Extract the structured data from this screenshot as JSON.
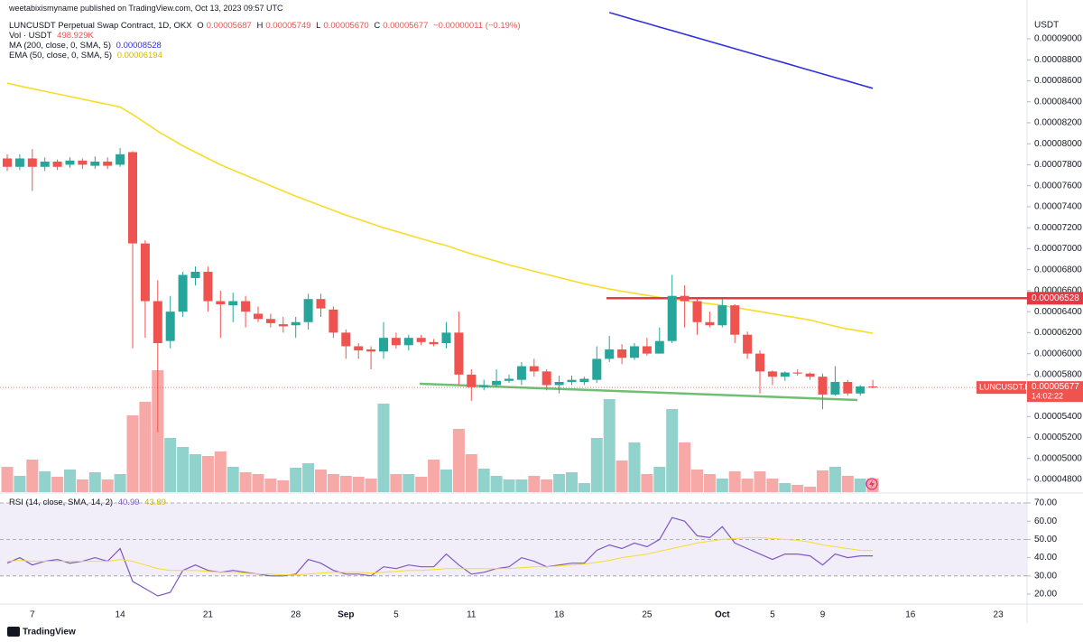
{
  "header": {
    "attribution": "weetabixismyname published on TradingView.com, Oct 13, 2023 09:57 UTC",
    "symbol": "LUNCUSDT Perpetual Swap Contract, 1D, OKX",
    "ohlc": [
      {
        "key": "O",
        "value": "0.00005687"
      },
      {
        "key": "H",
        "value": "0.00005749"
      },
      {
        "key": "L",
        "value": "0.00005670"
      },
      {
        "key": "C",
        "value": "0.00005677"
      }
    ],
    "change": "−0.00000011 (−0.19%)"
  },
  "chart_data": [
    {
      "type": "candlestick",
      "y_unit": "USDT",
      "up_color": "#26a69a",
      "down_color": "#ef5350",
      "categories": [
        null,
        null,
        "7",
        null,
        null,
        null,
        null,
        null,
        null,
        "14",
        null,
        null,
        null,
        null,
        null,
        null,
        "21",
        null,
        null,
        null,
        null,
        null,
        null,
        "28",
        null,
        null,
        null,
        "Sep",
        null,
        null,
        null,
        "5",
        null,
        null,
        null,
        null,
        null,
        "11",
        null,
        null,
        null,
        null,
        null,
        null,
        "18",
        null,
        null,
        null,
        null,
        null,
        null,
        "25",
        null,
        null,
        null,
        null,
        null,
        "Oct",
        null,
        null,
        null,
        "5",
        null,
        null,
        null,
        "9",
        null,
        null,
        null,
        null,
        null,
        null,
        "16",
        null,
        null,
        null,
        null,
        null,
        null,
        "23",
        null,
        null
      ],
      "open": [
        7.86e-05,
        7.78e-05,
        7.86e-05,
        7.78e-05,
        7.83e-05,
        7.8e-05,
        7.84e-05,
        7.79e-05,
        7.83e-05,
        7.8e-05,
        7.92e-05,
        7.05e-05,
        6.5e-05,
        6.12e-05,
        6.4e-05,
        6.72e-05,
        6.78e-05,
        6.5e-05,
        6.46e-05,
        6.5e-05,
        6.38e-05,
        6.33e-05,
        6.28e-05,
        6.27e-05,
        6.3e-05,
        6.52e-05,
        6.42e-05,
        6.2e-05,
        6.07e-05,
        6.04e-05,
        6.02e-05,
        6.15e-05,
        6.08e-05,
        6.15e-05,
        6.11e-05,
        6.1e-05,
        6.2e-05,
        5.8e-05,
        5.68e-05,
        5.7e-05,
        5.74e-05,
        5.75e-05,
        5.88e-05,
        5.83e-05,
        5.7e-05,
        5.73e-05,
        5.73e-05,
        5.75e-05,
        5.95e-05,
        6.04e-05,
        5.96e-05,
        6.07e-05,
        6e-05,
        6.12e-05,
        6.55e-05,
        6.5e-05,
        6.3e-05,
        6.27e-05,
        6.46e-05,
        6.18e-05,
        6e-05,
        5.83e-05,
        5.78e-05,
        5.82e-05,
        5.81e-05,
        5.78e-05,
        5.61e-05,
        5.73e-05,
        5.62e-05,
        5.687e-05,
        null,
        null,
        null,
        null,
        null,
        null,
        null,
        null,
        null,
        null,
        null,
        null
      ],
      "high": [
        7.9e-05,
        7.9e-05,
        7.95e-05,
        7.87e-05,
        7.85e-05,
        7.87e-05,
        7.86e-05,
        7.88e-05,
        7.87e-05,
        7.96e-05,
        7.93e-05,
        7.08e-05,
        6.7e-05,
        6.55e-05,
        6.78e-05,
        6.83e-05,
        6.83e-05,
        6.6e-05,
        6.58e-05,
        6.55e-05,
        6.45e-05,
        6.38e-05,
        6.35e-05,
        6.35e-05,
        6.57e-05,
        6.57e-05,
        6.45e-05,
        6.23e-05,
        6.1e-05,
        6.07e-05,
        6.3e-05,
        6.2e-05,
        6.18e-05,
        6.18e-05,
        6.14e-05,
        6.3e-05,
        6.4e-05,
        5.85e-05,
        5.75e-05,
        5.85e-05,
        5.8e-05,
        5.92e-05,
        5.95e-05,
        5.85e-05,
        5.79e-05,
        5.79e-05,
        5.78e-05,
        6.07e-05,
        6.17e-05,
        6.09e-05,
        6.1e-05,
        6.15e-05,
        6.25e-05,
        6.75e-05,
        6.65e-05,
        6.52e-05,
        6.4e-05,
        6.52e-05,
        6.47e-05,
        6.21e-05,
        6.03e-05,
        5.84e-05,
        5.83e-05,
        5.85e-05,
        5.82e-05,
        5.81e-05,
        5.88e-05,
        5.75e-05,
        5.7e-05,
        5.749e-05,
        null,
        null,
        null,
        null,
        null,
        null,
        null,
        null,
        null,
        null,
        null,
        null
      ],
      "low": [
        7.74e-05,
        7.75e-05,
        7.55e-05,
        7.74e-05,
        7.75e-05,
        7.77e-05,
        7.76e-05,
        7.76e-05,
        7.76e-05,
        7.78e-05,
        6.05e-05,
        6.15e-05,
        5.25e-05,
        6.05e-05,
        6.35e-05,
        6.65e-05,
        6.4e-05,
        6.15e-05,
        6.3e-05,
        6.25e-05,
        6.3e-05,
        6.25e-05,
        6.2e-05,
        6.15e-05,
        6.23e-05,
        6.35e-05,
        6.15e-05,
        5.95e-05,
        5.95e-05,
        5.85e-05,
        5.95e-05,
        6.05e-05,
        6.03e-05,
        6.08e-05,
        6.07e-05,
        6.05e-05,
        5.7e-05,
        5.55e-05,
        5.65e-05,
        5.68e-05,
        5.72e-05,
        5.7e-05,
        5.78e-05,
        5.65e-05,
        5.62e-05,
        5.7e-05,
        5.7e-05,
        5.72e-05,
        5.92e-05,
        5.9e-05,
        5.94e-05,
        5.98e-05,
        6e-05,
        6.1e-05,
        6.25e-05,
        6.18e-05,
        6.25e-05,
        6.25e-05,
        6.1e-05,
        5.95e-05,
        5.62e-05,
        5.7e-05,
        5.74e-05,
        5.79e-05,
        5.75e-05,
        5.47e-05,
        5.6e-05,
        5.6e-05,
        5.6e-05,
        5.67e-05,
        null,
        null,
        null,
        null,
        null,
        null,
        null,
        null,
        null,
        null,
        null,
        null
      ],
      "close": [
        7.78e-05,
        7.86e-05,
        7.78e-05,
        7.83e-05,
        7.78e-05,
        7.84e-05,
        7.8e-05,
        7.83e-05,
        7.79e-05,
        7.9e-05,
        7.05e-05,
        6.5e-05,
        6.1e-05,
        6.4e-05,
        6.75e-05,
        6.78e-05,
        6.5e-05,
        6.47e-05,
        6.5e-05,
        6.4e-05,
        6.33e-05,
        6.29e-05,
        6.26e-05,
        6.3e-05,
        6.52e-05,
        6.43e-05,
        6.2e-05,
        6.07e-05,
        6.03e-05,
        6.02e-05,
        6.15e-05,
        6.08e-05,
        6.15e-05,
        6.11e-05,
        6.09e-05,
        6.2e-05,
        5.8e-05,
        5.68e-05,
        5.7e-05,
        5.74e-05,
        5.76e-05,
        5.88e-05,
        5.83e-05,
        5.7e-05,
        5.73e-05,
        5.75e-05,
        5.76e-05,
        5.95e-05,
        6.04e-05,
        5.96e-05,
        6.07e-05,
        6e-05,
        6.12e-05,
        6.55e-05,
        6.5e-05,
        6.3e-05,
        6.27e-05,
        6.46e-05,
        6.18e-05,
        6e-05,
        5.83e-05,
        5.78e-05,
        5.82e-05,
        5.81e-05,
        5.78e-05,
        5.61e-05,
        5.73e-05,
        5.62e-05,
        5.687e-05,
        5.677e-05,
        null,
        null,
        null,
        null,
        null,
        null,
        null,
        null,
        null,
        null,
        null,
        null
      ],
      "volume": {
        "name": "Vol · USDT",
        "last_label": "498.929K",
        "values": [
          924000,
          594000,
          1188000,
          759000,
          561000,
          825000,
          462000,
          726000,
          462000,
          660000,
          2805000,
          3300000,
          4455000,
          1980000,
          1650000,
          1386000,
          1320000,
          1485000,
          924000,
          726000,
          660000,
          495000,
          429000,
          891000,
          1056000,
          825000,
          660000,
          594000,
          561000,
          495000,
          3234000,
          660000,
          660000,
          561000,
          1188000,
          825000,
          2310000,
          1386000,
          858000,
          594000,
          462000,
          462000,
          594000,
          462000,
          660000,
          726000,
          330000,
          1980000,
          3399000,
          1155000,
          1815000,
          660000,
          924000,
          3036000,
          1815000,
          825000,
          660000,
          495000,
          759000,
          495000,
          759000,
          495000,
          330000,
          264000,
          198000,
          792000,
          924000,
          594000,
          495000,
          498929,
          null,
          null,
          null,
          null,
          null,
          null,
          null,
          null,
          null,
          null,
          null,
          null
        ]
      },
      "series": [
        {
          "name": "EMA (50, close, 0, SMA, 5)",
          "color": "#f7dc2a",
          "last_label": "0.00006194",
          "values": [
            8.578e-05,
            8.55e-05,
            8.525e-05,
            8.5e-05,
            8.475e-05,
            8.45e-05,
            8.425e-05,
            8.4e-05,
            8.375e-05,
            8.35e-05,
            8.28e-05,
            8.2e-05,
            8.12e-05,
            8.05e-05,
            7.98e-05,
            7.92e-05,
            7.86e-05,
            7.8e-05,
            7.75e-05,
            7.7e-05,
            7.65e-05,
            7.6e-05,
            7.55e-05,
            7.5e-05,
            7.455e-05,
            7.41e-05,
            7.365e-05,
            7.32e-05,
            7.28e-05,
            7.24e-05,
            7.2e-05,
            7.165e-05,
            7.13e-05,
            7.095e-05,
            7.06e-05,
            7.03e-05,
            6.99e-05,
            6.95e-05,
            6.915e-05,
            6.88e-05,
            6.845e-05,
            6.815e-05,
            6.785e-05,
            6.755e-05,
            6.725e-05,
            6.695e-05,
            6.665e-05,
            6.64e-05,
            6.615e-05,
            6.595e-05,
            6.575e-05,
            6.555e-05,
            6.535e-05,
            6.52e-05,
            6.505e-05,
            6.49e-05,
            6.475e-05,
            6.46e-05,
            6.44e-05,
            6.42e-05,
            6.4e-05,
            6.38e-05,
            6.36e-05,
            6.34e-05,
            6.32e-05,
            6.29e-05,
            6.26e-05,
            6.235e-05,
            6.215e-05,
            6.194e-05,
            null,
            null,
            null,
            null,
            null,
            null,
            null,
            null,
            null,
            null,
            null,
            null
          ]
        },
        {
          "name": "MA (200, close, 0, SMA, 5)",
          "color": "#2f2fe0",
          "last_label": "0.00008528",
          "values": [
            null,
            null,
            null,
            null,
            null,
            null,
            null,
            null,
            null,
            null,
            null,
            null,
            null,
            null,
            null,
            null,
            null,
            null,
            null,
            null,
            null,
            null,
            null,
            null,
            null,
            null,
            null,
            null,
            null,
            null,
            null,
            null,
            null,
            null,
            null,
            null,
            null,
            null,
            null,
            null,
            null,
            null,
            null,
            null,
            null,
            null,
            null,
            null,
            9.25e-05,
            9.216e-05,
            9.181e-05,
            9.147e-05,
            9.112e-05,
            9.078e-05,
            9.044e-05,
            9.009e-05,
            8.975e-05,
            8.941e-05,
            8.906e-05,
            8.872e-05,
            8.837e-05,
            8.803e-05,
            8.769e-05,
            8.734e-05,
            8.7e-05,
            8.665e-05,
            8.631e-05,
            8.597e-05,
            8.562e-05,
            8.528e-05,
            null,
            null,
            null,
            null,
            null,
            null,
            null,
            null,
            null,
            null,
            null,
            null
          ]
        }
      ],
      "price_line": {
        "value": 6.528e-05,
        "label": "0.00006528",
        "color": "#e53945"
      },
      "last_price": {
        "symbol": "LUNCUSDT.P",
        "countdown": "14:02:22"
      },
      "ylim": [
        4.68e-05,
        9.37e-05
      ],
      "yticks": [
        {
          "value": 9e-05,
          "label": "0.00009000"
        },
        {
          "value": 8.8e-05,
          "label": "0.00008800"
        },
        {
          "value": 8.6e-05,
          "label": "0.00008600"
        },
        {
          "value": 8.4e-05,
          "label": "0.00008400"
        },
        {
          "value": 8.2e-05,
          "label": "0.00008200"
        },
        {
          "value": 8e-05,
          "label": "0.00008000"
        },
        {
          "value": 7.8e-05,
          "label": "0.00007800"
        },
        {
          "value": 7.6e-05,
          "label": "0.00007600"
        },
        {
          "value": 7.4e-05,
          "label": "0.00007400"
        },
        {
          "value": 7.2e-05,
          "label": "0.00007200"
        },
        {
          "value": 7e-05,
          "label": "0.00007000"
        },
        {
          "value": 6.8e-05,
          "label": "0.00006800"
        },
        {
          "value": 6.6e-05,
          "label": "0.00006600"
        },
        {
          "value": 6.4e-05,
          "label": "0.00006400"
        },
        {
          "value": 6.2e-05,
          "label": "0.00006200"
        },
        {
          "value": 6e-05,
          "label": "0.00006000"
        },
        {
          "value": 5.8e-05,
          "label": "0.00005800"
        },
        {
          "value": 5.4e-05,
          "label": "0.00005400"
        },
        {
          "value": 5.2e-05,
          "label": "0.00005200"
        },
        {
          "value": 5e-05,
          "label": "0.00005000"
        },
        {
          "value": 4.8e-05,
          "label": "0.00004800"
        }
      ]
    },
    {
      "type": "line",
      "title": "RSI (14, close, SMA, 14, 2)",
      "band_color": "#ede7f6",
      "levels": [
        70,
        50,
        30
      ],
      "series": [
        {
          "color": "#7e57c2",
          "last_label": "40.99",
          "values": [
            37,
            40,
            36,
            38,
            39,
            37,
            38,
            40,
            38,
            45,
            27,
            23,
            19,
            21,
            33,
            36,
            33,
            32,
            33,
            32,
            31,
            30,
            30,
            31,
            39,
            37,
            33,
            31,
            31,
            30,
            35,
            34,
            36,
            35,
            35,
            42,
            36,
            31,
            32,
            34,
            35,
            40,
            38,
            35,
            36,
            37,
            37,
            44,
            47,
            45,
            48,
            46,
            50,
            62,
            60,
            52,
            51,
            57,
            48,
            45,
            42,
            39,
            42,
            42,
            41,
            36,
            42,
            40,
            41,
            40.99,
            null,
            null,
            null,
            null,
            null,
            null,
            null,
            null,
            null,
            null,
            null,
            null
          ]
        },
        {
          "color": "#f7dc2a",
          "last_label": "43.89",
          "values": [
            38,
            38.5,
            38,
            38,
            38,
            38,
            38,
            38,
            38,
            39,
            38,
            36,
            34,
            33,
            33,
            33,
            32.5,
            32,
            32,
            31.5,
            31,
            31,
            30.5,
            30.5,
            31,
            31.5,
            32,
            32,
            32,
            31.5,
            32,
            32.5,
            33,
            33,
            33.5,
            34,
            34,
            34,
            34,
            34,
            34,
            34.5,
            35,
            35,
            35.5,
            36,
            36.5,
            37.5,
            38.5,
            40,
            41,
            42,
            43.5,
            45,
            46.5,
            48,
            49,
            50,
            50.5,
            51,
            51,
            50.5,
            50,
            49.5,
            48.5,
            47,
            46,
            45,
            44,
            43.89,
            null,
            null,
            null,
            null,
            null,
            null,
            null,
            null,
            null,
            null,
            null,
            null
          ]
        }
      ],
      "ylim": [
        15.05,
        74.46
      ],
      "yticks": [
        {
          "value": 70,
          "label": "70.00"
        },
        {
          "value": 60,
          "label": "60.00"
        },
        {
          "value": 50,
          "label": "50.00"
        },
        {
          "value": 40,
          "label": "40.00"
        },
        {
          "value": 30,
          "label": "30.00"
        },
        {
          "value": 20,
          "label": "20.00"
        }
      ]
    }
  ],
  "footer": {
    "brand": "TradingView"
  }
}
